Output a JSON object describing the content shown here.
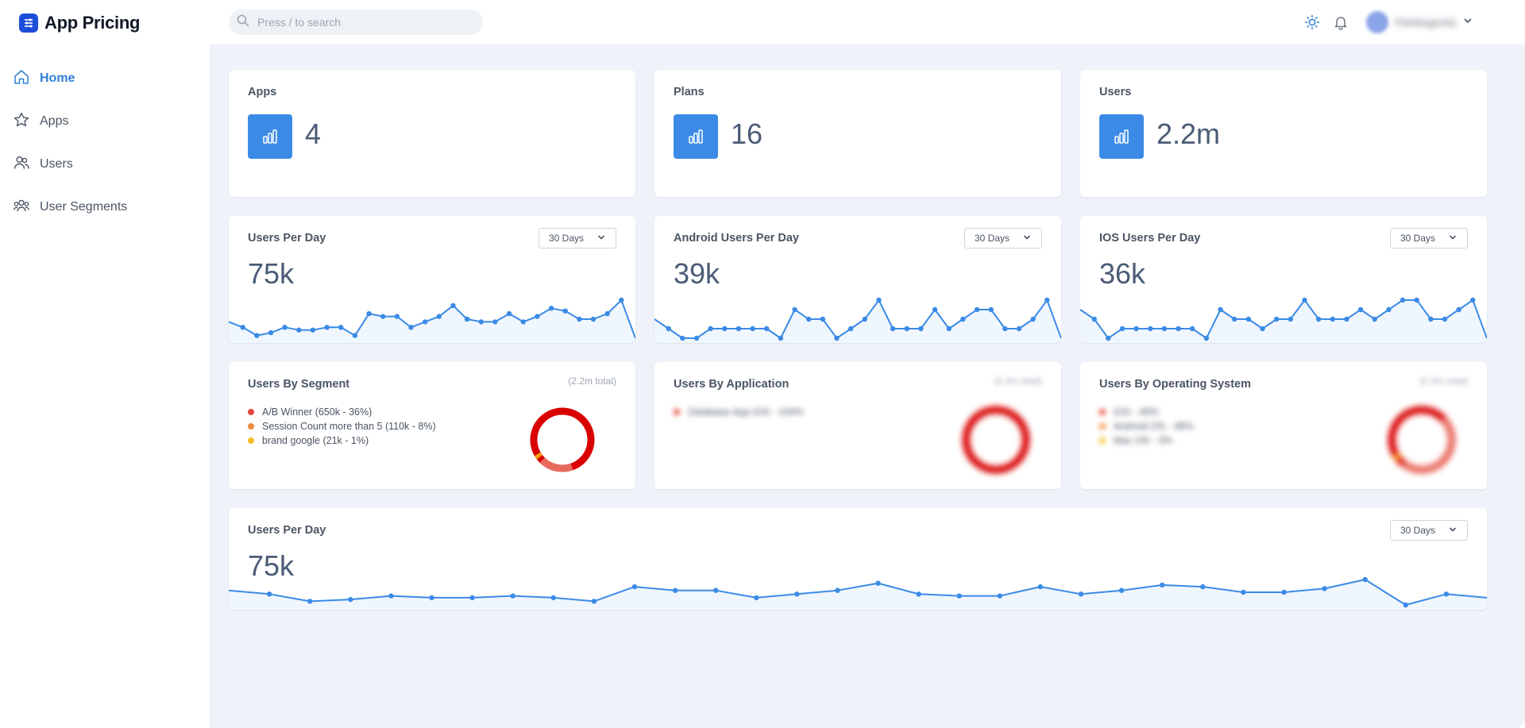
{
  "app": {
    "title": "App Pricing"
  },
  "search": {
    "placeholder": "Press / to search"
  },
  "header": {
    "username": "FileMagenta",
    "icons": [
      "sun-icon",
      "bell-icon",
      "chevron-down-icon"
    ]
  },
  "sidebar": {
    "items": [
      {
        "label": "Home",
        "icon": "home-icon",
        "active": true
      },
      {
        "label": "Apps",
        "icon": "star-icon",
        "active": false
      },
      {
        "label": "Users",
        "icon": "users-icon",
        "active": false
      },
      {
        "label": "User Segments",
        "icon": "user-group-icon",
        "active": false
      }
    ]
  },
  "stats": [
    {
      "title": "Apps",
      "value": "4"
    },
    {
      "title": "Plans",
      "value": "16"
    },
    {
      "title": "Users",
      "value": "2.2m"
    }
  ],
  "colors": {
    "accent": "#3b8be6",
    "line": "#3b8be6",
    "donut_primary": "#d90000",
    "donut_secondary": "#f59e0b"
  },
  "trend_cards": [
    {
      "title": "Users Per Day",
      "value": "75k",
      "range": "30 Days"
    },
    {
      "title": "Android Users Per Day",
      "value": "39k",
      "range": "30 Days"
    },
    {
      "title": "IOS Users Per Day",
      "value": "36k",
      "range": "30 Days"
    }
  ],
  "segments": {
    "title": "Users By Segment",
    "total": "(2.2m total)",
    "items": [
      {
        "label": "A/B Winner (650k - 36%)",
        "color": "#e5483b"
      },
      {
        "label": "Session Count more than 5 (110k - 8%)",
        "color": "#f08a3c"
      },
      {
        "label": "brand google (21k - 1%)",
        "color": "#f5c027"
      }
    ]
  },
  "applications": {
    "title": "Users By Application",
    "total": "(2.2m total)",
    "items": [
      {
        "label": "Database App iOS - 100%",
        "color": "#e5483b"
      }
    ]
  },
  "operating_systems": {
    "title": "Users By Operating System",
    "total": "(2.2m total)",
    "items": [
      {
        "label": "iOS - 49%",
        "color": "#e5483b"
      },
      {
        "label": "Android OS - 48%",
        "color": "#f08a3c"
      },
      {
        "label": "Mac OS - 3%",
        "color": "#f5c027"
      }
    ]
  },
  "bottom_card": {
    "title": "Users Per Day",
    "value": "75k",
    "range": "30 Days"
  },
  "chart_data": [
    {
      "type": "line",
      "title": "Users Per Day",
      "x": [
        1,
        2,
        3,
        4,
        5,
        6,
        7,
        8,
        9,
        10,
        11,
        12,
        13,
        14,
        15,
        16,
        17,
        18,
        19,
        20,
        21,
        22,
        23,
        24,
        25,
        26,
        27,
        28,
        29,
        30
      ],
      "series": [
        {
          "values": [
            72,
            70,
            67,
            68,
            70,
            69,
            69,
            70,
            70,
            67,
            75,
            74,
            74,
            70,
            72,
            74,
            78,
            73,
            72,
            72,
            75,
            72,
            74,
            77,
            76,
            73,
            73,
            75,
            80,
            66
          ]
        }
      ]
    },
    {
      "type": "line",
      "title": "Android Users Per Day",
      "x": [
        1,
        2,
        3,
        4,
        5,
        6,
        7,
        8,
        9,
        10,
        11,
        12,
        13,
        14,
        15,
        16,
        17,
        18,
        19,
        20,
        21,
        22,
        23,
        24,
        25,
        26,
        27,
        28,
        29,
        30
      ],
      "series": [
        {
          "values": [
            39,
            38,
            37,
            37,
            38,
            38,
            38,
            38,
            38,
            37,
            40,
            39,
            39,
            37,
            38,
            39,
            41,
            38,
            38,
            38,
            40,
            38,
            39,
            40,
            40,
            38,
            38,
            39,
            41,
            37
          ]
        }
      ]
    },
    {
      "type": "line",
      "title": "IOS Users Per Day",
      "x": [
        1,
        2,
        3,
        4,
        5,
        6,
        7,
        8,
        9,
        10,
        11,
        12,
        13,
        14,
        15,
        16,
        17,
        18,
        19,
        20,
        21,
        22,
        23,
        24,
        25,
        26,
        27,
        28,
        29,
        30
      ],
      "series": [
        {
          "values": [
            36,
            35,
            33,
            34,
            34,
            34,
            34,
            34,
            34,
            33,
            36,
            35,
            35,
            34,
            35,
            35,
            37,
            35,
            35,
            35,
            36,
            35,
            36,
            37,
            37,
            35,
            35,
            36,
            37,
            33
          ]
        }
      ]
    },
    {
      "type": "pie",
      "title": "Users By Segment",
      "categories": [
        "A/B Winner",
        "Session Count more than 5",
        "brand google"
      ],
      "values": [
        36,
        8,
        1
      ]
    },
    {
      "type": "pie",
      "title": "Users By Application",
      "categories": [
        "Database App iOS"
      ],
      "values": [
        100
      ]
    },
    {
      "type": "pie",
      "title": "Users By Operating System",
      "categories": [
        "iOS",
        "Android OS",
        "Mac OS"
      ],
      "values": [
        49,
        48,
        3
      ]
    },
    {
      "type": "line",
      "title": "Users Per Day",
      "x": [
        1,
        2,
        3,
        4,
        5,
        6,
        7,
        8,
        9,
        10,
        11,
        12,
        13,
        14,
        15,
        16,
        17,
        18,
        19,
        20,
        21,
        22,
        23,
        24,
        25,
        26,
        27,
        28,
        29,
        30,
        31,
        32
      ],
      "series": [
        {
          "values": [
            72,
            71,
            69,
            69.5,
            70.5,
            70,
            70,
            70.5,
            70,
            69,
            73,
            72,
            72,
            70,
            71,
            72,
            74,
            71,
            70.5,
            70.5,
            73,
            71,
            72,
            73.5,
            73,
            71.5,
            71.5,
            72.5,
            75,
            68,
            71,
            70
          ]
        }
      ]
    }
  ]
}
